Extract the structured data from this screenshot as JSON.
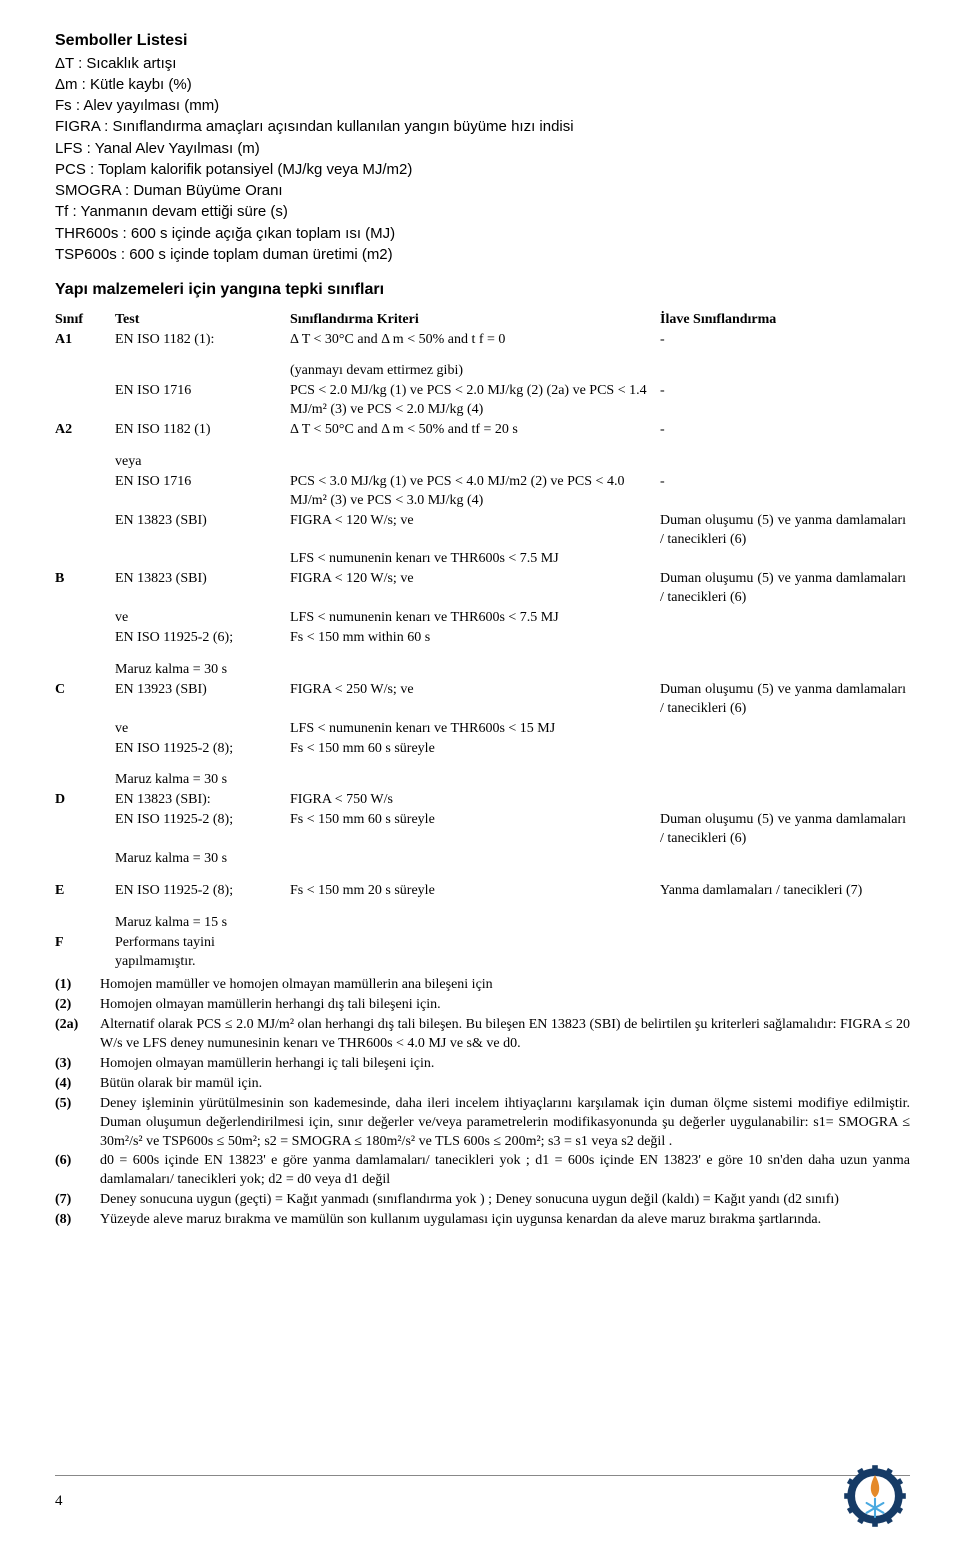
{
  "title": "Semboller Listesi",
  "symbols": [
    "ΔT : Sıcaklık artışı",
    "Δm : Kütle kaybı (%)",
    "Fs : Alev yayılması (mm)",
    "FIGRA : Sınıflandırma amaçları açısından kullanılan yangın büyüme hızı indisi",
    "LFS : Yanal Alev Yayılması (m)",
    "PCS : Toplam kalorifik potansiyel (MJ/kg veya MJ/m2)",
    "SMOGRA : Duman Büyüme Oranı",
    "Tf : Yanmanın devam ettiği süre (s)",
    "THR600s : 600 s içinde açığa çıkan toplam ısı (MJ)",
    "TSP600s : 600 s içinde toplam duman üretimi (m2)"
  ],
  "subheading": "Yapı malzemeleri için yangına tepki sınıfları",
  "table_headers": {
    "class": "Sınıf",
    "test": "Test",
    "criteria": "Sınıflandırma Kriteri",
    "additional": "İlave Sınıflandırma"
  },
  "rows": [
    {
      "class": "A1",
      "test": "EN ISO 1182 (1):",
      "crit": "Δ T < 30°C and Δ m < 50% and t f = 0",
      "add": "-"
    },
    {
      "class": "",
      "test": "",
      "crit": "(yanmayı devam ettirmez gibi)",
      "add": ""
    },
    {
      "class": "",
      "test": "EN ISO 1716",
      "crit": "PCS < 2.0 MJ/kg (1) ve PCS < 2.0 MJ/kg (2) (2a) ve PCS < 1.4 MJ/m² (3) ve PCS < 2.0 MJ/kg (4)",
      "add": "-"
    },
    {
      "class": "A2",
      "test": "EN ISO 1182 (1)",
      "crit": "Δ T < 50°C and Δ m < 50% and tf = 20 s",
      "add": "-"
    },
    {
      "class": "",
      "test": "veya",
      "crit": "",
      "add": ""
    },
    {
      "class": "",
      "test": "EN ISO 1716",
      "crit": "PCS < 3.0 MJ/kg (1) ve PCS < 4.0 MJ/m2 (2) ve PCS < 4.0 MJ/m² (3) ve PCS < 3.0 MJ/kg (4)",
      "add": "-"
    },
    {
      "class": "",
      "test": "EN 13823 (SBI)",
      "crit": "FIGRA < 120 W/s; ve",
      "add": "Duman oluşumu (5) ve yanma damlamaları / tanecikleri (6)"
    },
    {
      "class": "",
      "test": "",
      "crit": "LFS < numunenin kenarı ve THR600s < 7.5 MJ",
      "add": ""
    },
    {
      "class": "B",
      "test": "EN 13823 (SBI)",
      "crit": "FIGRA < 120 W/s; ve",
      "add": "Duman oluşumu (5) ve yanma damlamaları / tanecikleri (6)"
    },
    {
      "class": "",
      "test": "ve",
      "crit": "LFS < numunenin kenarı ve THR600s < 7.5 MJ",
      "add": ""
    },
    {
      "class": "",
      "test": "EN ISO 11925-2 (6);",
      "crit": "Fs < 150 mm within 60 s",
      "add": ""
    },
    {
      "class": "",
      "test": "Maruz kalma  = 30 s",
      "crit": "",
      "add": ""
    },
    {
      "class": "C",
      "test": "EN 13923 (SBI)",
      "crit": "FIGRA < 250 W/s; ve",
      "add": "Duman oluşumu (5) ve yanma damlamaları / tanecikleri (6)"
    },
    {
      "class": "",
      "test": "ve",
      "crit": "LFS < numunenin kenarı ve THR600s < 15 MJ",
      "add": ""
    },
    {
      "class": "",
      "test": "EN ISO 11925-2 (8);",
      "crit": "Fs < 150 mm 60 s süreyle",
      "add": ""
    },
    {
      "class": "",
      "test": "Maruz kalma  = 30 s",
      "crit": "",
      "add": ""
    },
    {
      "class": "D",
      "test": "EN 13823 (SBI):",
      "crit": "FIGRA < 750 W/s",
      "add": ""
    },
    {
      "class": "",
      "test": "EN ISO 11925-2 (8);",
      "crit": "Fs < 150 mm   60 s süreyle",
      "add": "Duman oluşumu (5) ve yanma damlamaları / tanecikleri (6)"
    },
    {
      "class": "",
      "test": "Maruz kalma  = 30 s",
      "crit": "",
      "add": ""
    },
    {
      "class": "E",
      "test": "EN ISO 11925-2 (8);",
      "crit": "Fs < 150 mm 20 s süreyle",
      "add": "Yanma damlamaları / tanecikleri  (7)"
    },
    {
      "class": "",
      "test": "Maruz kalma  = 15 s",
      "crit": "",
      "add": ""
    },
    {
      "class": "F",
      "test": "Performans tayini yapılmamıştır.",
      "crit": "",
      "add": ""
    }
  ],
  "notes": [
    {
      "n": "(1)",
      "t": "Homojen mamüller ve homojen olmayan mamüllerin ana bileşeni için"
    },
    {
      "n": "(2)",
      "t": "Homojen olmayan mamüllerin herhangi dış tali bileşeni için."
    },
    {
      "n": "(2a)",
      "t": "Alternatif olarak  PCS ≤ 2.0 MJ/m² olan herhangi dış tali bileşen. Bu bileşen EN 13823 (SBI) de belirtilen şu kriterleri sağlamalıdır: FIGRA ≤ 20 W/s ve LFS deney numunesinin kenarı ve THR600s < 4.0 MJ ve s& ve d0."
    },
    {
      "n": "(3)",
      "t": "Homojen olmayan mamüllerin herhangi iç tali bileşeni için."
    },
    {
      "n": "(4)",
      "t": "Bütün olarak bir mamül için."
    },
    {
      "n": "(5)",
      "t": "Deney işleminin yürütülmesinin son kademesinde, daha ileri incelem ihtiyaçlarını karşılamak için duman ölçme sistemi modifiye edilmiştir. Duman oluşumun değerlendirilmesi için, sınır değerler ve/veya parametrelerin modifikasyonunda şu değerler uygulanabilir: s1= SMOGRA ≤ 30m²/s² ve TSP600s ≤ 50m²; s2 = SMOGRA ≤ 180m²/s² ve TLS 600s ≤ 200m²; s3 = s1 veya  s2 değil ."
    },
    {
      "n": "(6)",
      "t": "d0 = 600s içinde EN 13823' e göre yanma damlamaları/ tanecikleri yok ; d1 = 600s içinde EN 13823' e göre 10 sn'den daha uzun yanma damlamaları/ tanecikleri yok; d2 = d0 veya d1 değil"
    },
    {
      "n": "(7)",
      "t": "Deney sonucuna uygun (geçti) = Kağıt yanmadı (sınıflandırma yok ) ; Deney sonucuna uygun değil (kaldı) = Kağıt yandı (d2 sınıfı)"
    },
    {
      "n": "(8)",
      "t": "Yüzeyde aleve maruz bırakma ve mamülün son kullanım uygulaması için uygunsa kenardan da aleve maruz bırakma şartlarında."
    }
  ],
  "page_number": "4",
  "logo": {
    "gear_color": "#163b66",
    "flame_color": "#e58a2a",
    "snow_color": "#4aa9e0"
  }
}
